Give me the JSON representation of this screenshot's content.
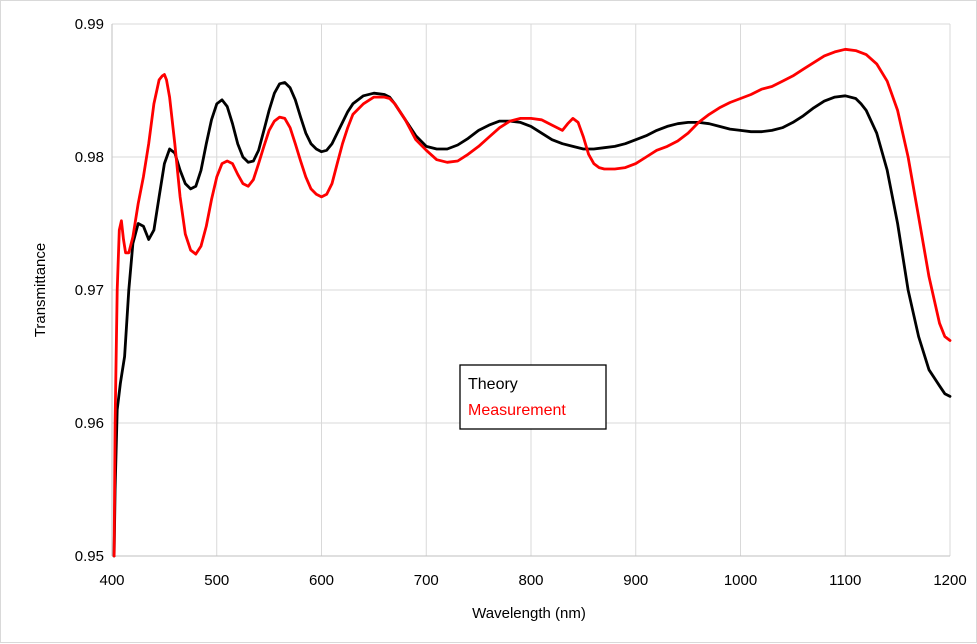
{
  "chart_data": {
    "type": "line",
    "title": "",
    "xlabel": "Wavelength (nm)",
    "ylabel": "Transmittance",
    "xlim": [
      400,
      1200
    ],
    "ylim": [
      0.95,
      0.99
    ],
    "xticks": [
      400,
      500,
      600,
      700,
      800,
      900,
      1000,
      1100,
      1200
    ],
    "yticks": [
      0.95,
      0.96,
      0.97,
      0.98,
      0.99
    ],
    "xtick_labels": [
      "400",
      "500",
      "600",
      "700",
      "800",
      "900",
      "1000",
      "1100",
      "1200"
    ],
    "ytick_labels": [
      "0.95",
      "0.96",
      "0.97",
      "0.98",
      "0.99"
    ],
    "grid": true,
    "legend_position": "center",
    "series": [
      {
        "name": "Theory",
        "color": "#000000",
        "x": [
          402,
          403,
          405,
          408,
          412,
          416,
          420,
          425,
          430,
          435,
          440,
          445,
          450,
          455,
          460,
          465,
          470,
          475,
          480,
          485,
          490,
          495,
          500,
          505,
          510,
          515,
          520,
          525,
          530,
          535,
          540,
          545,
          550,
          555,
          560,
          565,
          570,
          575,
          580,
          585,
          590,
          595,
          600,
          605,
          610,
          615,
          620,
          625,
          630,
          640,
          650,
          660,
          665,
          670,
          680,
          690,
          700,
          710,
          720,
          730,
          740,
          750,
          760,
          770,
          780,
          790,
          800,
          810,
          820,
          830,
          840,
          850,
          860,
          870,
          880,
          890,
          900,
          910,
          920,
          930,
          940,
          950,
          960,
          970,
          980,
          990,
          1000,
          1010,
          1020,
          1030,
          1040,
          1050,
          1060,
          1070,
          1080,
          1090,
          1100,
          1110,
          1115,
          1120,
          1130,
          1140,
          1150,
          1160,
          1170,
          1180,
          1190,
          1195,
          1200
        ],
        "values": [
          0.95,
          0.955,
          0.961,
          0.963,
          0.965,
          0.97,
          0.9735,
          0.975,
          0.9748,
          0.9738,
          0.9745,
          0.977,
          0.9795,
          0.9806,
          0.9803,
          0.979,
          0.978,
          0.9776,
          0.9778,
          0.979,
          0.981,
          0.9828,
          0.984,
          0.9843,
          0.9838,
          0.9825,
          0.981,
          0.98,
          0.9796,
          0.9797,
          0.9805,
          0.982,
          0.9835,
          0.9848,
          0.9855,
          0.9856,
          0.9852,
          0.9843,
          0.983,
          0.9818,
          0.981,
          0.9806,
          0.9804,
          0.9805,
          0.981,
          0.9818,
          0.9826,
          0.9834,
          0.984,
          0.9846,
          0.9848,
          0.9847,
          0.9845,
          0.984,
          0.9828,
          0.9816,
          0.9808,
          0.9806,
          0.9806,
          0.9809,
          0.9814,
          0.982,
          0.9824,
          0.9827,
          0.9827,
          0.9826,
          0.9823,
          0.9818,
          0.9813,
          0.981,
          0.9808,
          0.9806,
          0.9806,
          0.9807,
          0.9808,
          0.981,
          0.9813,
          0.9816,
          0.982,
          0.9823,
          0.9825,
          0.9826,
          0.9826,
          0.9825,
          0.9823,
          0.9821,
          0.982,
          0.9819,
          0.9819,
          0.982,
          0.9822,
          0.9826,
          0.9831,
          0.9837,
          0.9842,
          0.9845,
          0.9846,
          0.9844,
          0.984,
          0.9835,
          0.9818,
          0.979,
          0.975,
          0.97,
          0.9665,
          0.964,
          0.9628,
          0.9622,
          0.962
        ]
      },
      {
        "name": "Measurement",
        "color": "#ff0000",
        "x": [
          402,
          403,
          405,
          407,
          409,
          411,
          413,
          416,
          420,
          425,
          430,
          435,
          440,
          445,
          448,
          450,
          452,
          455,
          460,
          465,
          470,
          475,
          480,
          485,
          490,
          495,
          500,
          505,
          510,
          515,
          520,
          525,
          530,
          535,
          540,
          545,
          550,
          555,
          560,
          565,
          570,
          575,
          580,
          585,
          590,
          595,
          600,
          605,
          610,
          615,
          620,
          625,
          630,
          640,
          650,
          660,
          665,
          670,
          680,
          690,
          700,
          710,
          720,
          730,
          740,
          750,
          760,
          770,
          780,
          790,
          800,
          810,
          820,
          830,
          835,
          840,
          845,
          850,
          855,
          860,
          865,
          870,
          880,
          890,
          900,
          910,
          920,
          930,
          940,
          950,
          960,
          970,
          980,
          990,
          1000,
          1010,
          1020,
          1030,
          1040,
          1050,
          1060,
          1070,
          1080,
          1090,
          1100,
          1110,
          1120,
          1130,
          1140,
          1150,
          1160,
          1170,
          1180,
          1190,
          1195,
          1200
        ],
        "values": [
          0.95,
          0.96,
          0.97,
          0.9745,
          0.9752,
          0.9738,
          0.9728,
          0.9728,
          0.974,
          0.9765,
          0.9785,
          0.981,
          0.984,
          0.9858,
          0.9861,
          0.9862,
          0.9858,
          0.9845,
          0.981,
          0.977,
          0.9742,
          0.973,
          0.9727,
          0.9733,
          0.9748,
          0.9768,
          0.9785,
          0.9795,
          0.9797,
          0.9795,
          0.9787,
          0.978,
          0.9778,
          0.9783,
          0.9795,
          0.9808,
          0.982,
          0.9827,
          0.983,
          0.9829,
          0.9822,
          0.981,
          0.9797,
          0.9785,
          0.9776,
          0.9772,
          0.977,
          0.9772,
          0.978,
          0.9795,
          0.981,
          0.9822,
          0.9832,
          0.984,
          0.9845,
          0.9845,
          0.9844,
          0.984,
          0.9828,
          0.9813,
          0.9805,
          0.9798,
          0.9796,
          0.9797,
          0.9802,
          0.9808,
          0.9815,
          0.9822,
          0.9827,
          0.9829,
          0.9829,
          0.9828,
          0.9824,
          0.982,
          0.9825,
          0.9829,
          0.9826,
          0.9815,
          0.9802,
          0.9795,
          0.9792,
          0.9791,
          0.9791,
          0.9792,
          0.9795,
          0.98,
          0.9805,
          0.9808,
          0.9812,
          0.9818,
          0.9826,
          0.9832,
          0.9837,
          0.9841,
          0.9844,
          0.9847,
          0.9851,
          0.9853,
          0.9857,
          0.9861,
          0.9866,
          0.9871,
          0.9876,
          0.9879,
          0.9881,
          0.988,
          0.9877,
          0.987,
          0.9857,
          0.9835,
          0.98,
          0.9755,
          0.971,
          0.9675,
          0.9665,
          0.9662
        ]
      }
    ]
  }
}
